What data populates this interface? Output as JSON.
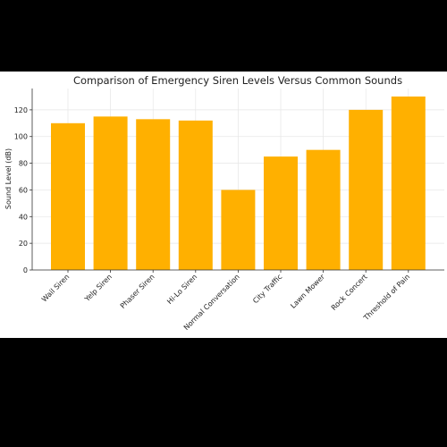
{
  "chart_data": {
    "type": "bar",
    "title": "Comparison of Emergency Siren Levels Versus Common Sounds",
    "xlabel": "",
    "ylabel": "Sound Level (dB)",
    "categories": [
      "Wail Siren",
      "Yelp Siren",
      "Phaser Siren",
      "Hi-Lo Siren",
      "Normal Conversation",
      "City Traffic",
      "Lawn Mower",
      "Rock Concert",
      "Threshold of Pain"
    ],
    "values": [
      110,
      115,
      113,
      112,
      60,
      85,
      90,
      120,
      130
    ],
    "ylim": [
      0,
      136
    ],
    "yticks": [
      0,
      20,
      40,
      60,
      80,
      100,
      120
    ],
    "grid": true,
    "bar_color": "#ffb000"
  }
}
